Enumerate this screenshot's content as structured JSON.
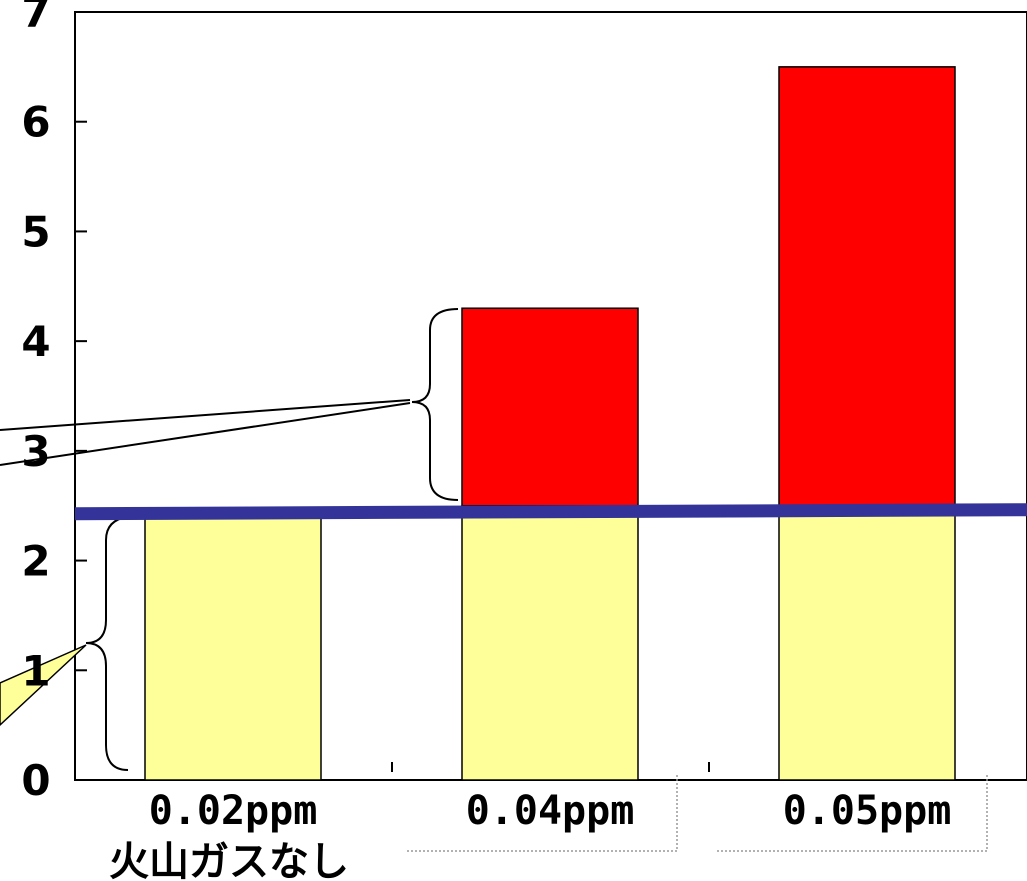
{
  "chart_data": {
    "type": "bar",
    "stacked": true,
    "categories": [
      "0.02ppm",
      "0.04ppm",
      "0.05ppm"
    ],
    "category_sublabels": [
      "火山ガスなし",
      "",
      ""
    ],
    "series": [
      {
        "values": [
          2.45,
          2.5,
          2.5
        ],
        "color": "#ffff99"
      },
      {
        "values": [
          0,
          1.8,
          4.0
        ],
        "color": "#ff0000"
      }
    ],
    "reference_line": {
      "value": 2.5,
      "color": "#333399"
    },
    "y_ticks": [
      "0",
      "1",
      "2",
      "3",
      "4",
      "5",
      "6",
      "7"
    ],
    "ylim": [
      0,
      7
    ],
    "grid": false
  }
}
